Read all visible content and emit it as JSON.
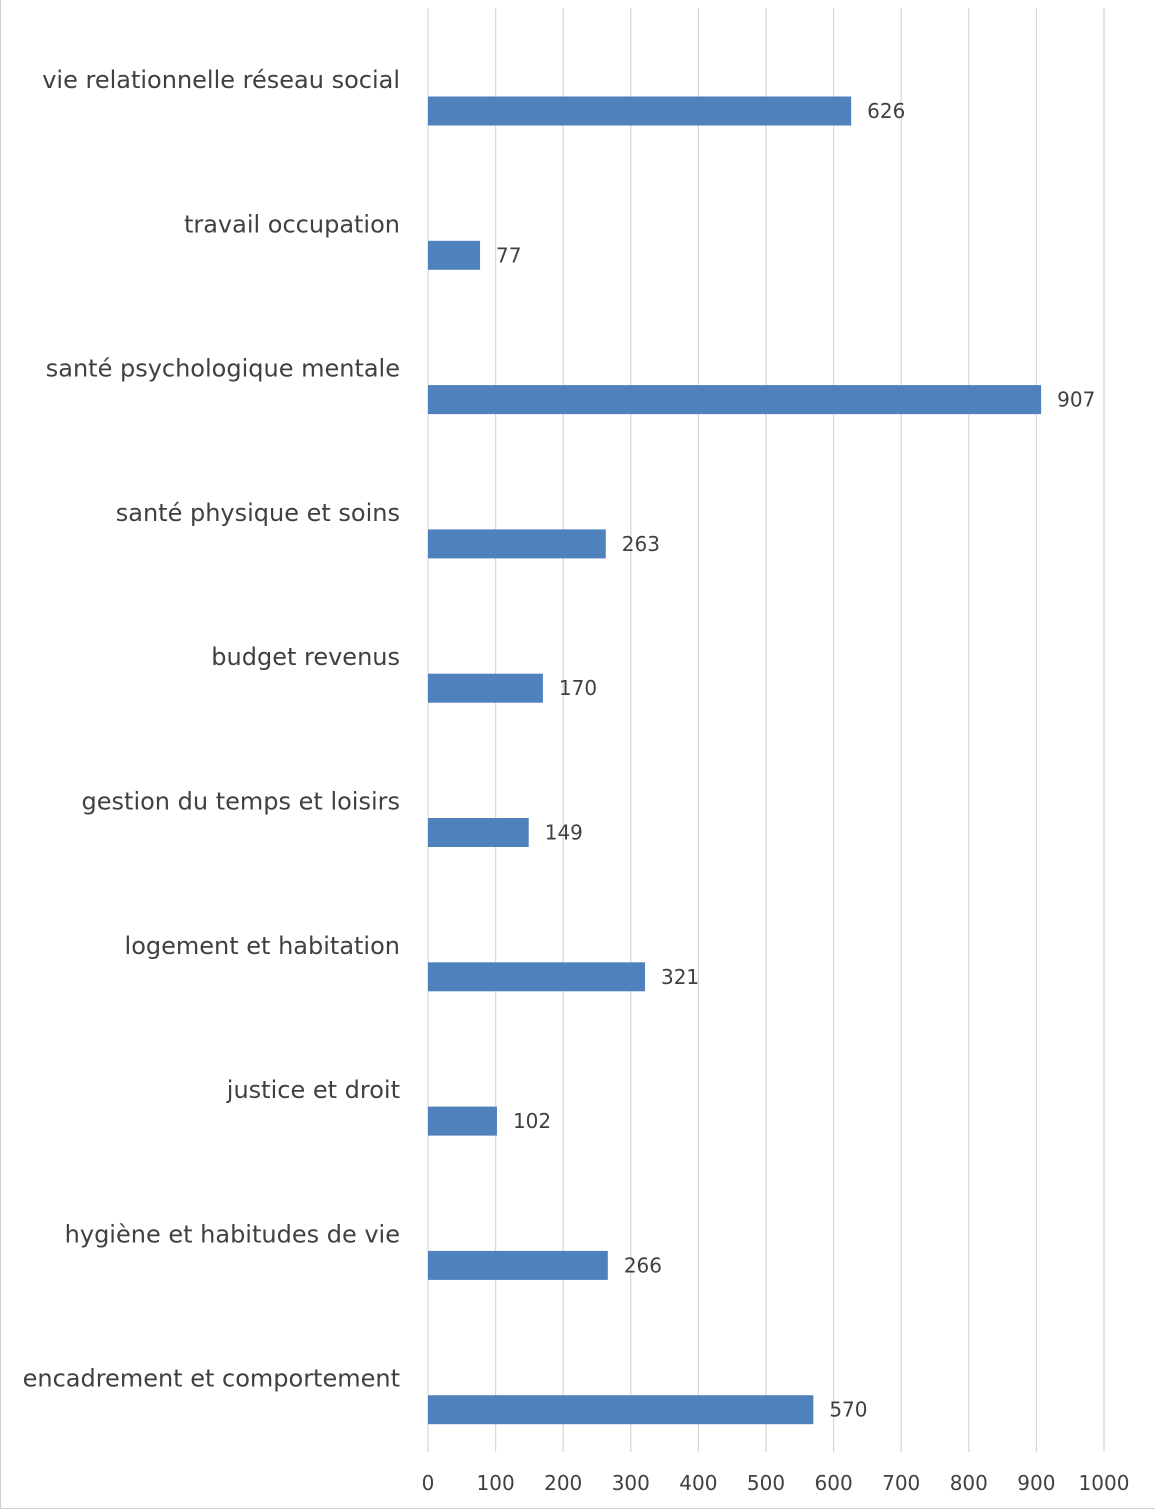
{
  "chart_data": {
    "type": "bar",
    "orientation": "horizontal",
    "categories": [
      "vie relationnelle réseau social",
      "travail occupation",
      "santé psychologique mentale",
      "santé physique et soins",
      "budget revenus",
      "gestion du temps et loisirs",
      "logement et habitation",
      "justice et droit",
      "hygiène et habitudes de vie",
      "encadrement et comportement"
    ],
    "values": [
      626,
      77,
      907,
      263,
      170,
      149,
      321,
      102,
      266,
      570
    ],
    "xlim": [
      0,
      1000
    ],
    "x_ticks": [
      "0",
      "100",
      "200",
      "300",
      "400",
      "500",
      "600",
      "700",
      "800",
      "900",
      "1000"
    ],
    "grid": true,
    "data_labels": true,
    "bar_color": "#4f81bd",
    "title": "",
    "xlabel": "",
    "ylabel": ""
  }
}
